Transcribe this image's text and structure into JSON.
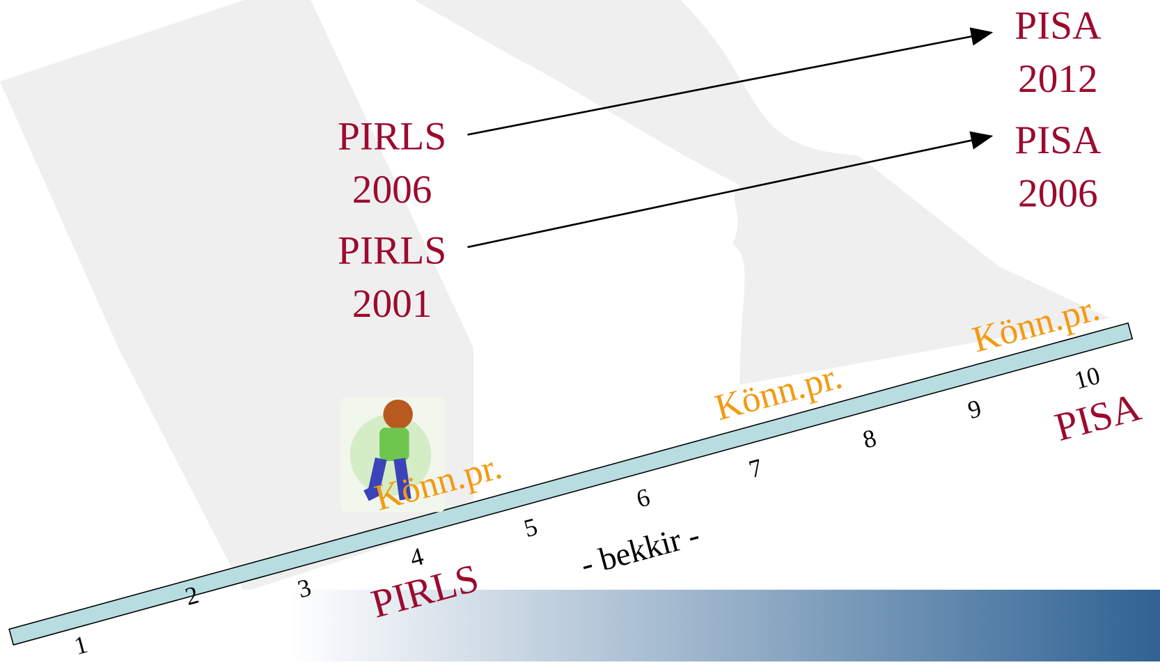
{
  "arrows": [
    {
      "from": {
        "line1": "PIRLS",
        "line2": "2006"
      },
      "to": {
        "line1": "PISA",
        "line2": "2012"
      }
    },
    {
      "from": {
        "line1": "PIRLS",
        "line2": "2001"
      },
      "to": {
        "line1": "PISA",
        "line2": "2006"
      }
    }
  ],
  "grades": [
    "1",
    "2",
    "3",
    "4",
    "5",
    "6",
    "7",
    "8",
    "9",
    "10"
  ],
  "markers": [
    "Könn.pr.",
    "Könn.pr.",
    "Könn.pr."
  ],
  "ruler_labels": {
    "start": "PIRLS",
    "end": "PISA"
  },
  "caption": "- bekkir -"
}
